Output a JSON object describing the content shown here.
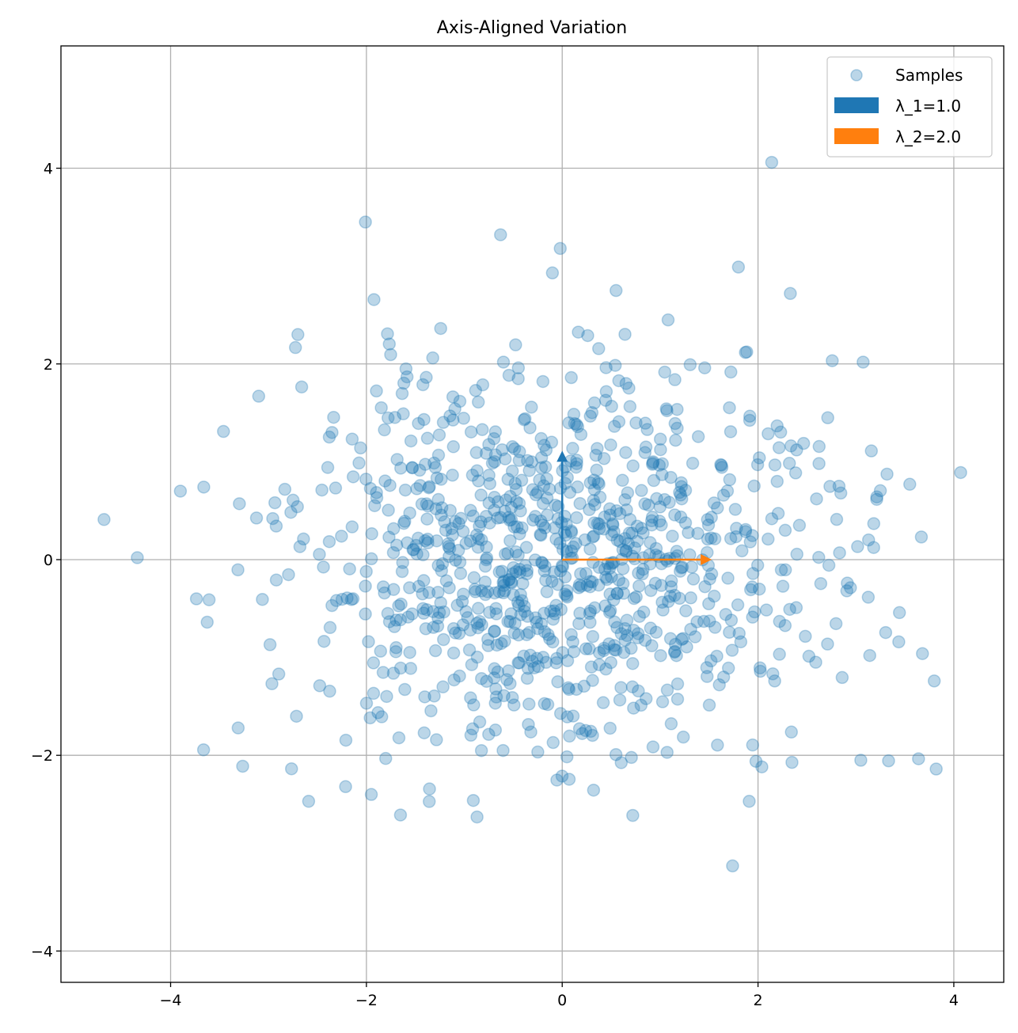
{
  "chart_data": {
    "type": "scatter",
    "title": "Axis-Aligned Variation",
    "xlabel": "",
    "ylabel": "",
    "xlim": [
      -5.12,
      4.51
    ],
    "ylim": [
      -4.32,
      5.25
    ],
    "xticks": [
      -4,
      -2,
      0,
      2,
      4
    ],
    "yticks": [
      -4,
      -2,
      0,
      2,
      4
    ],
    "xtick_labels": [
      "−4",
      "−2",
      "0",
      "2",
      "4"
    ],
    "ytick_labels": [
      "−4",
      "−2",
      "0",
      "2",
      "4"
    ],
    "grid": true,
    "legend_position": "top-right",
    "series": [
      {
        "name": "Samples",
        "color": "#1f77b4",
        "alpha": 0.3,
        "generated_core": {
          "n": 980,
          "mean": [
            0,
            0
          ],
          "std": [
            1.41,
            1.0
          ],
          "seed": 7
        },
        "points": [
          [
            -4.68,
            0.41
          ],
          [
            -4.34,
            0.02
          ],
          [
            -3.9,
            0.7
          ],
          [
            2.14,
            4.06
          ],
          [
            -2.01,
            3.45
          ],
          [
            -0.63,
            3.32
          ],
          [
            -0.02,
            3.18
          ],
          [
            4.07,
            0.89
          ],
          [
            1.74,
            -3.13
          ],
          [
            -0.87,
            -2.63
          ],
          [
            3.82,
            -2.14
          ],
          [
            3.05,
            -2.05
          ],
          [
            -3.31,
            -1.72
          ],
          [
            -2.59,
            -2.47
          ],
          [
            1.91,
            -2.47
          ],
          [
            1.8,
            2.99
          ],
          [
            2.33,
            2.72
          ],
          [
            -1.95,
            -2.4
          ],
          [
            -3.1,
            1.67
          ],
          [
            3.55,
            0.77
          ],
          [
            3.8,
            -1.24
          ],
          [
            -3.46,
            1.31
          ],
          [
            -2.7,
            2.3
          ],
          [
            -0.1,
            2.93
          ],
          [
            0.55,
            2.75
          ]
        ]
      }
    ],
    "arrows": [
      {
        "name": "λ_1=1.0",
        "color": "#1f77b4",
        "from": [
          0,
          0
        ],
        "to": [
          0,
          1.0
        ]
      },
      {
        "name": "λ_2=2.0",
        "color": "#ff7f0e",
        "from": [
          0,
          0
        ],
        "to": [
          1.414,
          0
        ]
      }
    ],
    "legend": [
      "Samples",
      "λ_1=1.0",
      "λ_2=2.0"
    ]
  }
}
